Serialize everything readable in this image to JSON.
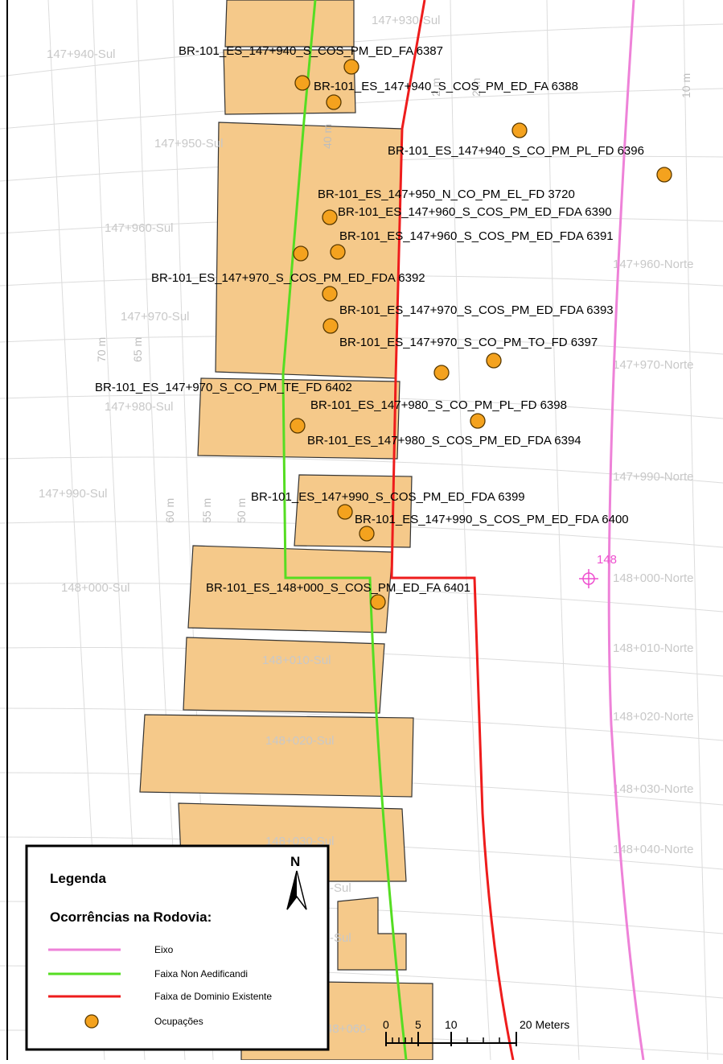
{
  "map": {
    "stations_sul": [
      "147+930-Sul",
      "147+940-Sul",
      "147+950-Sul",
      "147+960-Sul",
      "147+970-Sul",
      "147+980-Sul",
      "147+990-Sul",
      "148+000-Sul",
      "148+010-Sul",
      "148+020-Sul",
      "148+030-Sul",
      "-Sul",
      "-Sul",
      "48+060-"
    ],
    "stations_norte": [
      "147+960-Norte",
      "147+970-Norte",
      "147+990-Norte",
      "148+000-Norte",
      "148+010-Norte",
      "148+020-Norte",
      "148+030-Norte",
      "148+040-Norte"
    ],
    "distance_labels": [
      "70 m",
      "65 m",
      "60 m",
      "55 m",
      "50 m",
      "40 m",
      "2 m",
      "2 m",
      "10 m"
    ],
    "axis_marker": "148",
    "occurrences": [
      "BR-101_ES_147+940_S_COS_PM_ED_FA 6387",
      "BR-101_ES_147+940_S_COS_PM_ED_FA 6388",
      "BR-101_ES_147+940_S_CO_PM_PL_FD 6396",
      "BR-101_ES_147+950_N_CO_PM_EL_FD 3720",
      "BR-101_ES_147+960_S_COS_PM_ED_FDA 6390",
      "BR-101_ES_147+960_S_COS_PM_ED_FDA 6391",
      "BR-101_ES_147+970_S_COS_PM_ED_FDA 6392",
      "BR-101_ES_147+970_S_COS_PM_ED_FDA 6393",
      "BR-101_ES_147+970_S_CO_PM_TO_FD 6397",
      "BR-101_ES_147+970_S_CO_PM_TE_FD 6402",
      "BR-101_ES_147+980_S_CO_PM_PL_FD 6398",
      "BR-101_ES_147+980_S_COS_PM_ED_FDA 6394",
      "BR-101_ES_147+990_S_COS_PM_ED_FDA 6399",
      "BR-101_ES_147+990_S_COS_PM_ED_FDA 6400",
      "BR-101_ES_148+000_S_COS_PM_ED_FA 6401"
    ]
  },
  "legend": {
    "title": "Legenda",
    "subtitle": "Ocorrências na Rodovia:",
    "north": "N",
    "items": [
      {
        "label": "Eixo",
        "color": "#ee82d8",
        "symbol": "line"
      },
      {
        "label": "Faixa Non Aedificandi",
        "color": "#55dd22",
        "symbol": "line"
      },
      {
        "label": "Faixa de Dominio Existente",
        "color": "#ee1c1c",
        "symbol": "line"
      },
      {
        "label": "Ocupações",
        "color": "#f4a21e",
        "symbol": "circle"
      }
    ],
    "scale_ticks": [
      "0",
      "5",
      "10",
      "20 Meters"
    ]
  },
  "colors": {
    "parcel_fill": "#f5c98a",
    "grid": "#dcdcdc"
  }
}
